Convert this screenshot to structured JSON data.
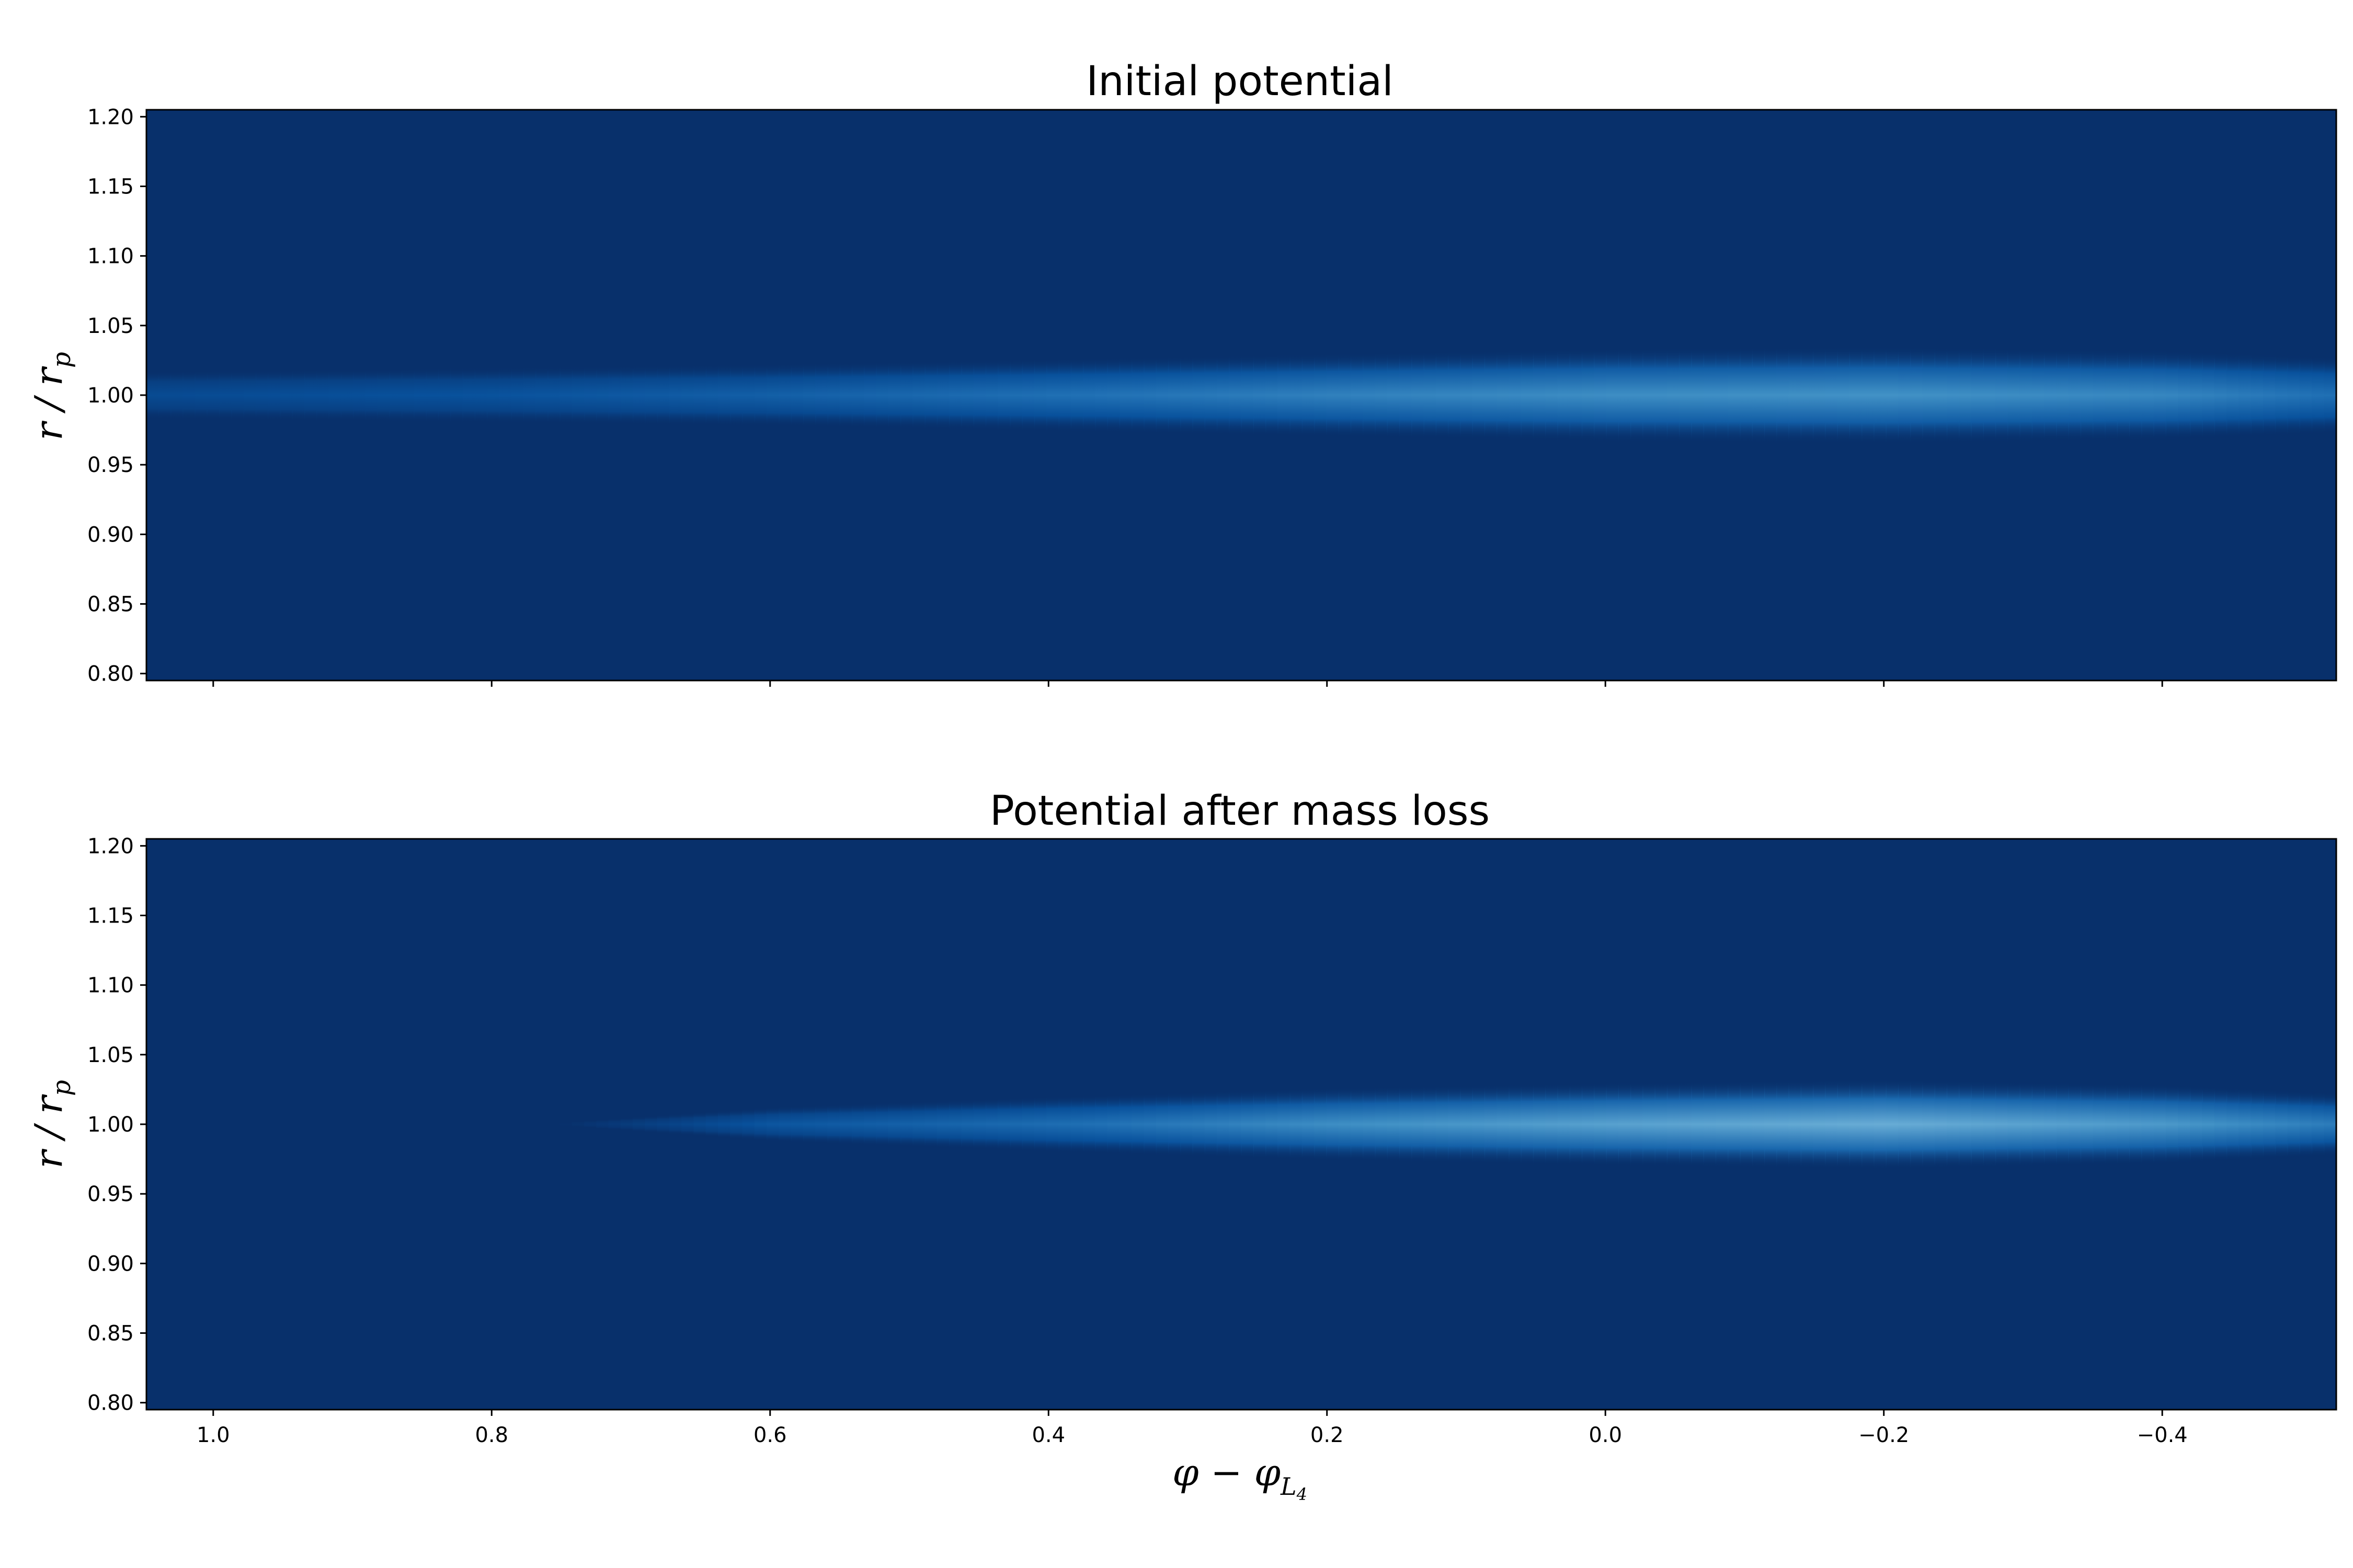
{
  "chart_data": [
    {
      "type": "heatmap",
      "title": "Initial potential",
      "xlabel": "",
      "ylabel": "r / r_p",
      "xlim": [
        1.048,
        -0.525
      ],
      "ylim": [
        0.795,
        1.205
      ],
      "x_inverted": true,
      "x_ticks": [
        1.0,
        0.8,
        0.6,
        0.4,
        0.2,
        0.0,
        -0.2,
        -0.4
      ],
      "x_tick_labels": [],
      "y_ticks": [
        0.8,
        0.85,
        0.9,
        0.95,
        1.0,
        1.05,
        1.1,
        1.15,
        1.2
      ],
      "y_tick_labels": [
        "0.80",
        "0.85",
        "0.90",
        "0.95",
        "1.00",
        "1.05",
        "1.10",
        "1.15",
        "1.20"
      ],
      "colormap": "Blues",
      "background_color": "#08306b",
      "feature": {
        "description": "bright horizontal band centered at r/r_p = 1.00 spanning the full phi range, widening and brightening toward negative phi",
        "center_r": 1.0,
        "profile": [
          {
            "phi": 1.048,
            "half_width": 0.014,
            "intensity": 0.2
          },
          {
            "phi": 0.8,
            "half_width": 0.016,
            "intensity": 0.26
          },
          {
            "phi": 0.6,
            "half_width": 0.018,
            "intensity": 0.34
          },
          {
            "phi": 0.4,
            "half_width": 0.021,
            "intensity": 0.44
          },
          {
            "phi": 0.2,
            "half_width": 0.024,
            "intensity": 0.52
          },
          {
            "phi": 0.0,
            "half_width": 0.027,
            "intensity": 0.58
          },
          {
            "phi": -0.2,
            "half_width": 0.028,
            "intensity": 0.6
          },
          {
            "phi": -0.4,
            "half_width": 0.026,
            "intensity": 0.55
          },
          {
            "phi": -0.525,
            "half_width": 0.022,
            "intensity": 0.44
          }
        ]
      }
    },
    {
      "type": "heatmap",
      "title": "Potential after mass loss",
      "xlabel": "φ − φ_L4",
      "ylabel": "r / r_p",
      "xlim": [
        1.048,
        -0.525
      ],
      "ylim": [
        0.795,
        1.205
      ],
      "x_inverted": true,
      "x_ticks": [
        1.0,
        0.8,
        0.6,
        0.4,
        0.2,
        0.0,
        -0.2,
        -0.4
      ],
      "x_tick_labels": [
        "1.0",
        "0.8",
        "0.6",
        "0.4",
        "0.2",
        "0.0",
        "−0.2",
        "−0.4"
      ],
      "y_ticks": [
        0.8,
        0.85,
        0.9,
        0.95,
        1.0,
        1.05,
        1.1,
        1.15,
        1.2
      ],
      "y_tick_labels": [
        "0.80",
        "0.85",
        "0.90",
        "0.95",
        "1.00",
        "1.05",
        "1.10",
        "1.15",
        "1.20"
      ],
      "colormap": "Blues",
      "background_color": "#08306b",
      "feature": {
        "description": "tapered bright band centered at r/r_p = 1.00 starting near phi = 0.75, brightest around phi = -0.2",
        "center_r": 1.0,
        "profile": [
          {
            "phi": 0.75,
            "half_width": 0.001,
            "intensity": 0.0
          },
          {
            "phi": 0.6,
            "half_width": 0.01,
            "intensity": 0.28
          },
          {
            "phi": 0.4,
            "half_width": 0.016,
            "intensity": 0.42
          },
          {
            "phi": 0.2,
            "half_width": 0.021,
            "intensity": 0.58
          },
          {
            "phi": 0.0,
            "half_width": 0.024,
            "intensity": 0.68
          },
          {
            "phi": -0.2,
            "half_width": 0.026,
            "intensity": 0.74
          },
          {
            "phi": -0.4,
            "half_width": 0.023,
            "intensity": 0.64
          },
          {
            "phi": -0.525,
            "half_width": 0.018,
            "intensity": 0.5
          }
        ]
      }
    }
  ]
}
